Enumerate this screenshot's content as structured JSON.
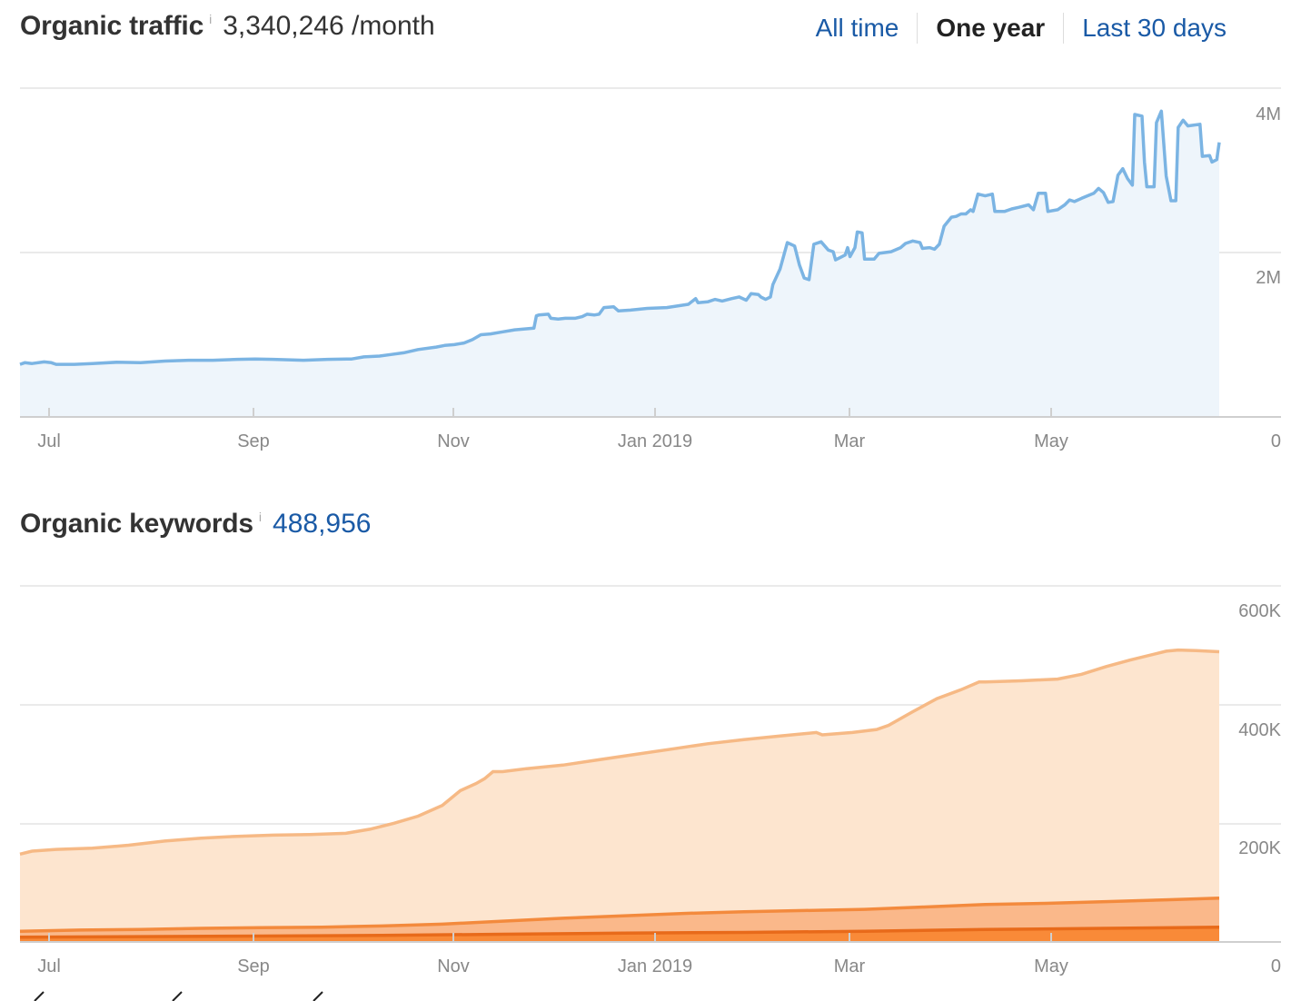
{
  "traffic": {
    "title": "Organic traffic",
    "info": "i",
    "value": "3,340,246 /month",
    "ranges": [
      "All time",
      "One year",
      "Last 30 days"
    ],
    "active_range": "One year"
  },
  "keywords": {
    "title": "Organic keywords",
    "info": "i",
    "value": "488,956"
  },
  "colors": {
    "traffic_line": "#7bb4e3",
    "traffic_fill": "#eef5fb",
    "kw_light_line": "#f6b985",
    "kw_light_fill": "#fde5cf",
    "kw_mid_line": "#f38a3d",
    "kw_mid_fill": "#fab88a",
    "kw_dark_line": "#e86a1a",
    "kw_dark_fill": "#f98a38",
    "grid": "#e3e3e3",
    "link": "#1a5aa6"
  },
  "chart_data": [
    {
      "type": "area",
      "title": "Organic traffic",
      "x_ticks": [
        "Jul",
        "Sep",
        "Nov",
        "Jan 2019",
        "Mar",
        "May"
      ],
      "y_ticks": [
        "4M",
        "2M",
        "0"
      ],
      "ylim": [
        0,
        4000000
      ],
      "grid": true,
      "series": [
        {
          "values": [
            [
              0,
              640000
            ],
            [
              4,
              660000
            ],
            [
              10,
              650000
            ],
            [
              20,
              670000
            ],
            [
              26,
              660000
            ],
            [
              30,
              640000
            ],
            [
              45,
              640000
            ],
            [
              60,
              650000
            ],
            [
              80,
              665000
            ],
            [
              100,
              660000
            ],
            [
              120,
              680000
            ],
            [
              140,
              690000
            ],
            [
              160,
              690000
            ],
            [
              180,
              700000
            ],
            [
              195,
              705000
            ],
            [
              210,
              700000
            ],
            [
              235,
              690000
            ],
            [
              255,
              700000
            ],
            [
              275,
              705000
            ],
            [
              285,
              730000
            ],
            [
              298,
              740000
            ],
            [
              308,
              760000
            ],
            [
              318,
              780000
            ],
            [
              330,
              820000
            ],
            [
              345,
              850000
            ],
            [
              352,
              870000
            ],
            [
              360,
              880000
            ],
            [
              368,
              900000
            ],
            [
              375,
              940000
            ],
            [
              382,
              1000000
            ],
            [
              390,
              1010000
            ],
            [
              398,
              1030000
            ],
            [
              410,
              1060000
            ],
            [
              426,
              1080000
            ],
            [
              428,
              1230000
            ],
            [
              430,
              1240000
            ],
            [
              438,
              1250000
            ],
            [
              440,
              1200000
            ],
            [
              446,
              1190000
            ],
            [
              452,
              1200000
            ],
            [
              460,
              1200000
            ],
            [
              466,
              1220000
            ],
            [
              470,
              1250000
            ],
            [
              476,
              1240000
            ],
            [
              480,
              1250000
            ],
            [
              484,
              1330000
            ],
            [
              492,
              1340000
            ],
            [
              496,
              1290000
            ],
            [
              506,
              1300000
            ],
            [
              520,
              1320000
            ],
            [
              536,
              1330000
            ],
            [
              554,
              1370000
            ],
            [
              560,
              1440000
            ],
            [
              562,
              1390000
            ],
            [
              570,
              1400000
            ],
            [
              576,
              1430000
            ],
            [
              582,
              1410000
            ],
            [
              590,
              1440000
            ],
            [
              596,
              1460000
            ],
            [
              602,
              1420000
            ],
            [
              606,
              1500000
            ],
            [
              612,
              1490000
            ],
            [
              614,
              1460000
            ],
            [
              618,
              1430000
            ],
            [
              622,
              1460000
            ],
            [
              624,
              1610000
            ],
            [
              630,
              1800000
            ],
            [
              636,
              2120000
            ],
            [
              642,
              2080000
            ],
            [
              646,
              1850000
            ],
            [
              650,
              1690000
            ],
            [
              654,
              1670000
            ],
            [
              658,
              2100000
            ],
            [
              664,
              2130000
            ],
            [
              670,
              2030000
            ],
            [
              674,
              2010000
            ],
            [
              676,
              1910000
            ],
            [
              680,
              1940000
            ],
            [
              684,
              1970000
            ],
            [
              686,
              2060000
            ],
            [
              688,
              1950000
            ],
            [
              692,
              2060000
            ],
            [
              694,
              2250000
            ],
            [
              698,
              2240000
            ],
            [
              700,
              1920000
            ],
            [
              708,
              1920000
            ],
            [
              712,
              1990000
            ],
            [
              722,
              2010000
            ],
            [
              730,
              2060000
            ],
            [
              734,
              2110000
            ],
            [
              740,
              2140000
            ],
            [
              746,
              2120000
            ],
            [
              748,
              2050000
            ],
            [
              754,
              2060000
            ],
            [
              758,
              2040000
            ],
            [
              762,
              2100000
            ],
            [
              766,
              2320000
            ],
            [
              772,
              2430000
            ],
            [
              776,
              2440000
            ],
            [
              780,
              2470000
            ],
            [
              784,
              2470000
            ],
            [
              788,
              2520000
            ],
            [
              790,
              2500000
            ],
            [
              794,
              2710000
            ],
            [
              800,
              2690000
            ],
            [
              806,
              2710000
            ],
            [
              808,
              2500000
            ],
            [
              816,
              2500000
            ],
            [
              822,
              2530000
            ],
            [
              828,
              2550000
            ],
            [
              836,
              2580000
            ],
            [
              840,
              2520000
            ],
            [
              844,
              2720000
            ],
            [
              850,
              2720000
            ],
            [
              852,
              2500000
            ],
            [
              860,
              2520000
            ],
            [
              866,
              2580000
            ],
            [
              870,
              2640000
            ],
            [
              874,
              2620000
            ],
            [
              880,
              2660000
            ],
            [
              890,
              2720000
            ],
            [
              894,
              2780000
            ],
            [
              898,
              2730000
            ],
            [
              902,
              2610000
            ],
            [
              906,
              2620000
            ],
            [
              910,
              2940000
            ],
            [
              914,
              3020000
            ],
            [
              918,
              2900000
            ],
            [
              922,
              2820000
            ],
            [
              924,
              3680000
            ],
            [
              930,
              3660000
            ],
            [
              932,
              3100000
            ],
            [
              934,
              2800000
            ],
            [
              940,
              2800000
            ],
            [
              942,
              3580000
            ],
            [
              946,
              3720000
            ],
            [
              950,
              2930000
            ],
            [
              954,
              2630000
            ],
            [
              958,
              2630000
            ],
            [
              960,
              3520000
            ],
            [
              964,
              3610000
            ],
            [
              968,
              3540000
            ],
            [
              978,
              3560000
            ],
            [
              980,
              3170000
            ],
            [
              986,
              3180000
            ],
            [
              988,
              3100000
            ],
            [
              992,
              3130000
            ],
            [
              994,
              3340000
            ]
          ]
        }
      ]
    },
    {
      "type": "area",
      "title": "Organic keywords",
      "x_ticks": [
        "Jul",
        "Sep",
        "Nov",
        "Jan 2019",
        "Mar",
        "May"
      ],
      "y_ticks": [
        "600K",
        "400K",
        "200K",
        "0"
      ],
      "ylim": [
        0,
        600000
      ],
      "grid": true,
      "series": [
        {
          "values": [
            [
              0,
              148000
            ],
            [
              10,
              153000
            ],
            [
              30,
              156000
            ],
            [
              60,
              158000
            ],
            [
              90,
              163000
            ],
            [
              120,
              170000
            ],
            [
              150,
              175000
            ],
            [
              180,
              178000
            ],
            [
              210,
              180000
            ],
            [
              240,
              181000
            ],
            [
              270,
              183000
            ],
            [
              290,
              190000
            ],
            [
              310,
              200000
            ],
            [
              330,
              212000
            ],
            [
              350,
              230000
            ],
            [
              365,
              255000
            ],
            [
              378,
              267000
            ],
            [
              385,
              275000
            ],
            [
              392,
              287000
            ],
            [
              400,
              287000
            ],
            [
              420,
              292000
            ],
            [
              450,
              298000
            ],
            [
              480,
              307000
            ],
            [
              510,
              316000
            ],
            [
              540,
              325000
            ],
            [
              570,
              334000
            ],
            [
              600,
              341000
            ],
            [
              630,
              347000
            ],
            [
              660,
              353000
            ],
            [
              665,
              349000
            ],
            [
              690,
              353000
            ],
            [
              710,
              358000
            ],
            [
              720,
              365000
            ],
            [
              740,
              388000
            ],
            [
              760,
              410000
            ],
            [
              780,
              425000
            ],
            [
              795,
              438000
            ],
            [
              800,
              438000
            ],
            [
              830,
              440000
            ],
            [
              860,
              443000
            ],
            [
              880,
              451000
            ],
            [
              900,
              464000
            ],
            [
              920,
              475000
            ],
            [
              950,
              490000
            ],
            [
              960,
              492000
            ],
            [
              975,
              491000
            ],
            [
              994,
              489000
            ]
          ]
        },
        {
          "values": [
            [
              0,
              18000
            ],
            [
              50,
              20000
            ],
            [
              100,
              21000
            ],
            [
              150,
              23000
            ],
            [
              200,
              24000
            ],
            [
              250,
              25000
            ],
            [
              300,
              27000
            ],
            [
              350,
              30000
            ],
            [
              400,
              35000
            ],
            [
              450,
              40000
            ],
            [
              500,
              44000
            ],
            [
              550,
              48000
            ],
            [
              600,
              51000
            ],
            [
              650,
              53000
            ],
            [
              700,
              55000
            ],
            [
              750,
              59000
            ],
            [
              800,
              63000
            ],
            [
              850,
              65000
            ],
            [
              900,
              68000
            ],
            [
              950,
              71000
            ],
            [
              994,
              74000
            ]
          ]
        },
        {
          "values": [
            [
              0,
              8000
            ],
            [
              100,
              9000
            ],
            [
              200,
              10000
            ],
            [
              300,
              11000
            ],
            [
              400,
              13000
            ],
            [
              500,
              15000
            ],
            [
              600,
              16000
            ],
            [
              700,
              18000
            ],
            [
              800,
              21000
            ],
            [
              900,
              23000
            ],
            [
              994,
              25000
            ]
          ]
        }
      ]
    }
  ]
}
